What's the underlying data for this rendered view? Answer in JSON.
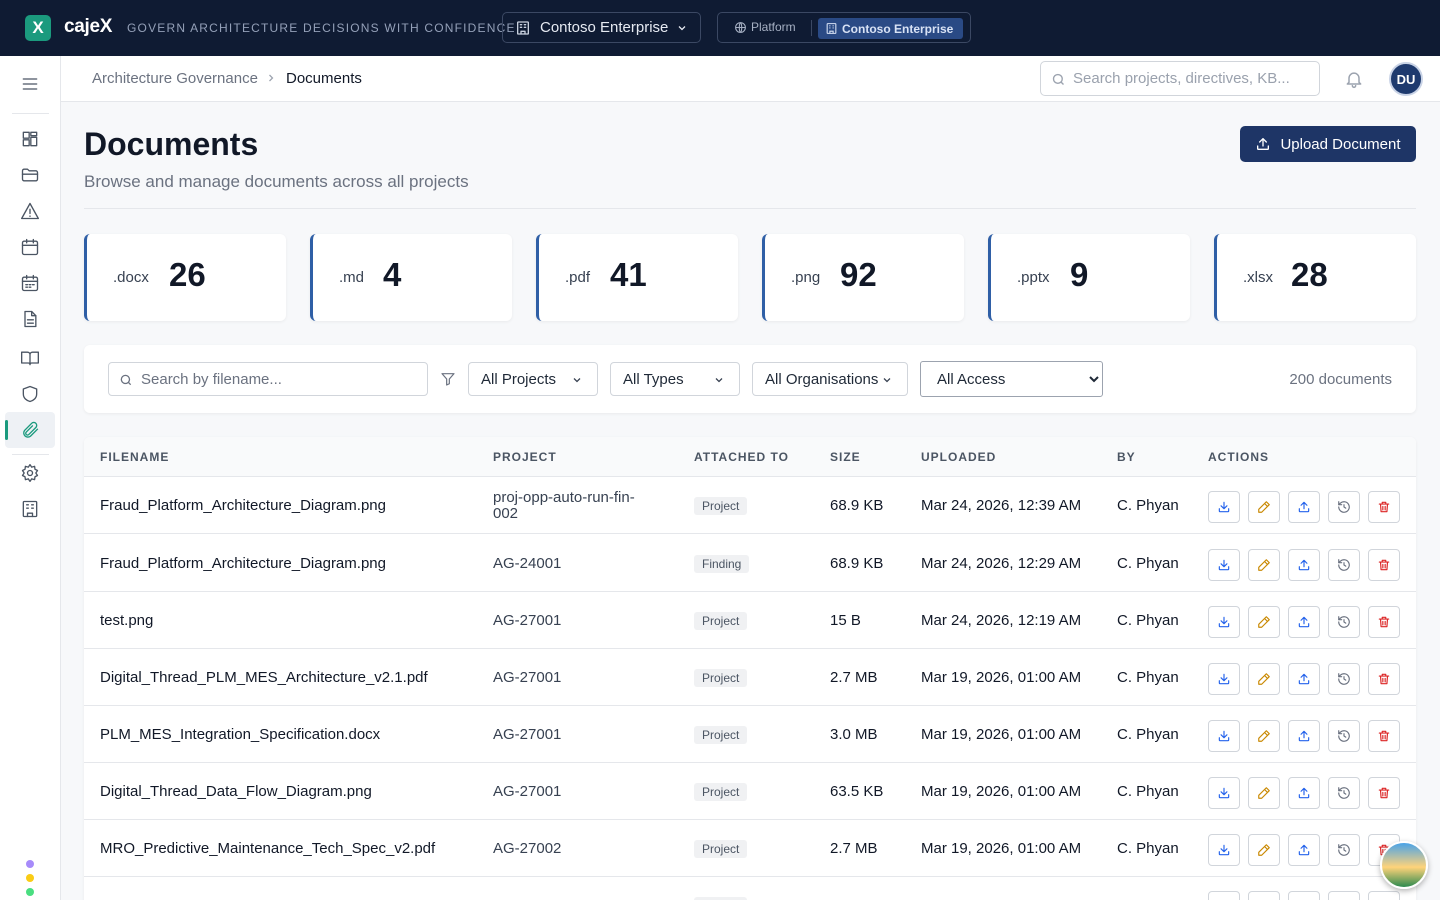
{
  "topbar": {
    "logo_letter": "X",
    "brand": "cajeX",
    "tagline": "GOVERN ARCHITECTURE DECISIONS WITH CONFIDENCE",
    "org_select": "Contoso Enterprise",
    "switcher_platform": "Platform",
    "switcher_active": "Contoso Enterprise"
  },
  "sidebar": {
    "items": [
      {
        "name": "menu-icon"
      },
      {
        "name": "dashboard-icon"
      },
      {
        "name": "folder-icon"
      },
      {
        "name": "alert-triangle-icon"
      },
      {
        "name": "calendar-icon"
      },
      {
        "name": "calendar-grid-icon"
      },
      {
        "name": "document-icon"
      },
      {
        "name": "book-icon"
      },
      {
        "name": "shield-icon"
      },
      {
        "name": "paperclip-icon"
      },
      {
        "name": "settings-icon"
      },
      {
        "name": "building-icon"
      }
    ],
    "active": "paperclip-icon",
    "dot_colors": [
      "#a78bfa",
      "#facc15",
      "#4ade80"
    ]
  },
  "header": {
    "breadcrumb_parent": "Architecture Governance",
    "breadcrumb_current": "Documents",
    "search_placeholder": "Search projects, directives, KB...",
    "avatar_initials": "DU"
  },
  "page": {
    "title": "Documents",
    "subtitle": "Browse and manage documents across all projects",
    "upload_label": "Upload Document"
  },
  "stats": [
    {
      "ext": ".docx",
      "count": "26"
    },
    {
      "ext": ".md",
      "count": "4"
    },
    {
      "ext": ".pdf",
      "count": "41"
    },
    {
      "ext": ".png",
      "count": "92"
    },
    {
      "ext": ".pptx",
      "count": "9"
    },
    {
      "ext": ".xlsx",
      "count": "28"
    }
  ],
  "filters": {
    "search_placeholder": "Search by filename...",
    "projects": "All Projects",
    "types": "All Types",
    "organisations": "All Organisations",
    "access": "All Access",
    "doc_count": "200 documents"
  },
  "table": {
    "headers": [
      "FILENAME",
      "PROJECT",
      "ATTACHED TO",
      "SIZE",
      "UPLOADED",
      "BY",
      "ACTIONS"
    ],
    "rows": [
      {
        "filename": "Fraud_Platform_Architecture_Diagram.png",
        "project": "proj-opp-auto-run-fin-\n002",
        "attached": "Project",
        "size": "68.9 KB",
        "uploaded": "Mar 24, 2026, 12:39 AM",
        "by": "C. Phyan"
      },
      {
        "filename": "Fraud_Platform_Architecture_Diagram.png",
        "project": "AG-24001",
        "attached": "Finding",
        "size": "68.9 KB",
        "uploaded": "Mar 24, 2026, 12:29 AM",
        "by": "C. Phyan"
      },
      {
        "filename": "test.png",
        "project": "AG-27001",
        "attached": "Project",
        "size": "15 B",
        "uploaded": "Mar 24, 2026, 12:19 AM",
        "by": "C. Phyan"
      },
      {
        "filename": "Digital_Thread_PLM_MES_Architecture_v2.1.pdf",
        "project": "AG-27001",
        "attached": "Project",
        "size": "2.7 MB",
        "uploaded": "Mar 19, 2026, 01:00 AM",
        "by": "C. Phyan"
      },
      {
        "filename": "PLM_MES_Integration_Specification.docx",
        "project": "AG-27001",
        "attached": "Project",
        "size": "3.0 MB",
        "uploaded": "Mar 19, 2026, 01:00 AM",
        "by": "C. Phyan"
      },
      {
        "filename": "Digital_Thread_Data_Flow_Diagram.png",
        "project": "AG-27001",
        "attached": "Project",
        "size": "63.5 KB",
        "uploaded": "Mar 19, 2026, 01:00 AM",
        "by": "C. Phyan"
      },
      {
        "filename": "MRO_Predictive_Maintenance_Tech_Spec_v2.pdf",
        "project": "AG-27002",
        "attached": "Project",
        "size": "2.7 MB",
        "uploaded": "Mar 19, 2026, 01:00 AM",
        "by": "C. Phyan"
      },
      {
        "filename": "",
        "project": "",
        "attached": "Project",
        "size": "",
        "uploaded": "",
        "by": ""
      }
    ],
    "actions": [
      {
        "name": "download-icon",
        "color": "#2563eb"
      },
      {
        "name": "edit-icon",
        "color": "#ca8a04"
      },
      {
        "name": "upload-icon",
        "color": "#2563eb"
      },
      {
        "name": "history-icon",
        "color": "#6b7280"
      },
      {
        "name": "trash-icon",
        "color": "#dc2626"
      }
    ]
  },
  "colors": {
    "topbar_bg": "#0f1b33",
    "accent": "#1b9a7e",
    "primary_button": "#1e3566",
    "stat_border": "#2f5fa6"
  }
}
